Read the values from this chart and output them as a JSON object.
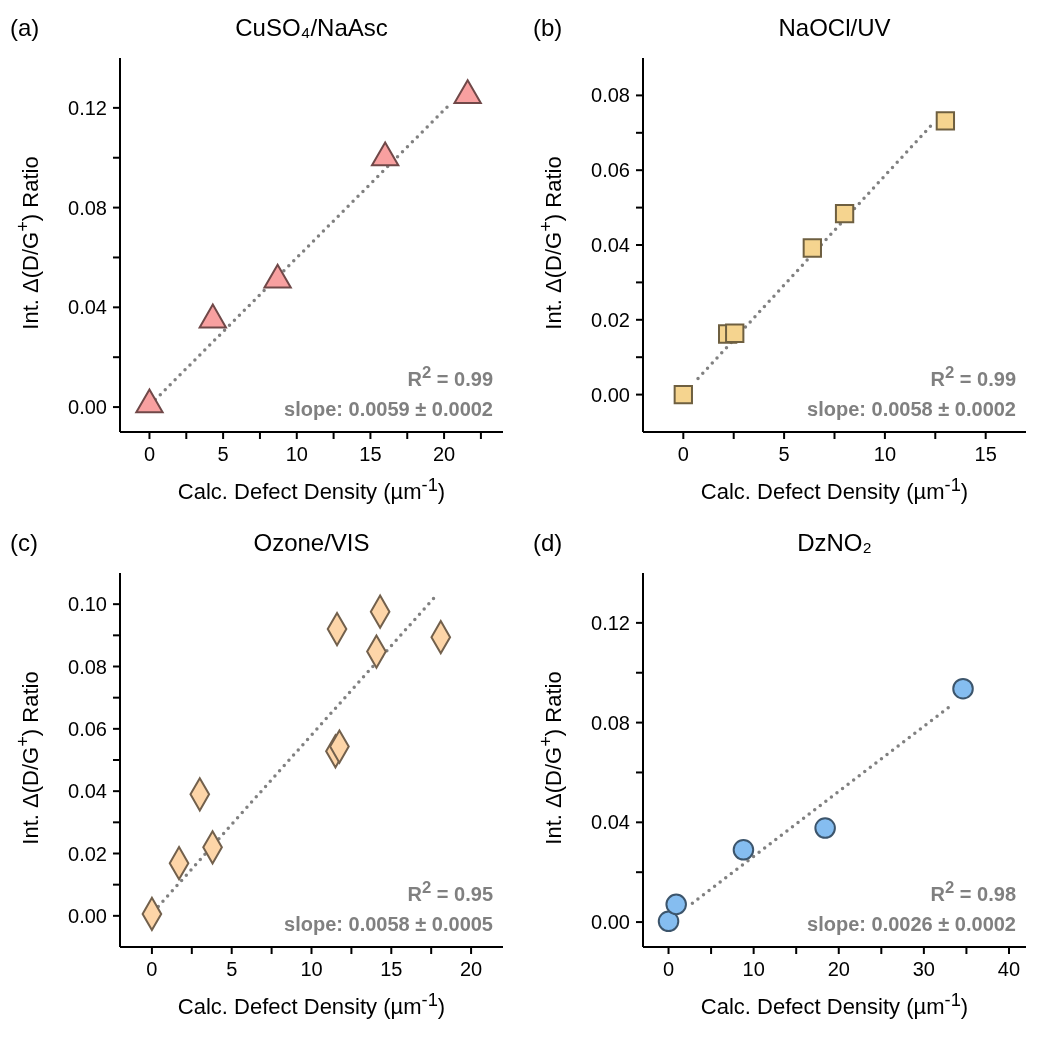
{
  "chart_data": [
    {
      "type": "scatter",
      "title": "CuSO₄/NaAsc",
      "xlabel": "Calc. Defect Density (µm$^{-1}$)",
      "ylabel": "Int. Δ(D/G$^{+}$) Ratio",
      "marker": "triangle",
      "annotations": [
        "(a)",
        "R$^{2}$ = 0.99",
        "slope: 0.0059 ± 0.0002"
      ],
      "xlim": [
        -2,
        24
      ],
      "xticks": [
        0,
        {
          "value": 2.5,
          "label": null
        },
        5,
        {
          "value": 7.5,
          "label": null
        },
        10,
        {
          "value": 12.5,
          "label": null
        },
        15,
        {
          "value": 17.5,
          "label": null
        },
        20,
        {
          "value": 22.5,
          "label": null
        }
      ],
      "ylim": [
        -0.01,
        0.14
      ],
      "yticks": [
        {
          "value": 0,
          "label": "0.00"
        },
        {
          "value": 0.02,
          "label": null
        },
        0.04,
        {
          "value": 0.06,
          "label": null
        },
        0.08,
        {
          "value": 0.1,
          "label": null
        },
        0.12
      ],
      "series": [
        {
          "color": "#f8a0a0",
          "x": [
            0,
            4.3,
            8.7,
            16.0,
            21.6
          ],
          "values": [
            0.001,
            0.035,
            0.051,
            0.1,
            0.125
          ]
        },
        {
          "type": "line",
          "marker": "none",
          "line_style": "dotted",
          "color": "#808080",
          "x": [
            0.4,
            20.4
          ],
          "values": [
            0.003,
            0.1215
          ]
        }
      ]
    },
    {
      "type": "scatter",
      "title": "NaOCl/UV",
      "xlabel": "Calc. Defect Density (µm$^{-1}$)",
      "ylabel": "Int. Δ(D/G$^{+}$) Ratio",
      "marker": "square",
      "annotations": [
        "(b)",
        "R$^{2}$ = 0.99",
        "slope: 0.0058 ± 0.0002"
      ],
      "xlim": [
        -2,
        17
      ],
      "xticks": [
        0,
        {
          "value": 2.5,
          "label": null
        },
        5,
        {
          "value": 7.5,
          "label": null
        },
        10,
        {
          "value": 12.5,
          "label": null
        },
        15
      ],
      "ylim": [
        -0.01,
        0.09
      ],
      "yticks": [
        {
          "value": 0,
          "label": "0.00"
        },
        {
          "value": 0.01,
          "label": null
        },
        0.02,
        {
          "value": 0.03,
          "label": null
        },
        0.04,
        {
          "value": 0.05,
          "label": null
        },
        0.06,
        {
          "value": 0.07,
          "label": null
        },
        0.08
      ],
      "series": [
        {
          "color": "#f5d48f",
          "x": [
            0,
            2.2,
            2.55,
            6.4,
            8.0,
            13.0
          ],
          "values": [
            0,
            0.0162,
            0.0164,
            0.0392,
            0.0484,
            0.0732
          ]
        },
        {
          "type": "line",
          "marker": "none",
          "line_style": "dotted",
          "color": "#808080",
          "x": [
            0.73,
            12.3
          ],
          "values": [
            0.0043,
            0.072
          ]
        }
      ]
    },
    {
      "type": "scatter",
      "title": "Ozone/VIS",
      "xlabel": "Calc. Defect Density (µm$^{-1}$)",
      "ylabel": "Int. Δ(D/G$^{+}$) Ratio",
      "marker": "diamond",
      "annotations": [
        "(c)",
        "R$^{2}$ = 0.95",
        "slope: 0.0058 ± 0.0005"
      ],
      "xlim": [
        -2,
        22
      ],
      "xticks": [
        0,
        {
          "value": 2.5,
          "label": null
        },
        5,
        {
          "value": 7.5,
          "label": null
        },
        10,
        {
          "value": 12.5,
          "label": null
        },
        15,
        {
          "value": 17.5,
          "label": null
        },
        20
      ],
      "ylim": [
        -0.01,
        0.11
      ],
      "yticks": [
        {
          "value": 0,
          "label": "0.00"
        },
        {
          "value": 0.01,
          "label": null
        },
        0.02,
        {
          "value": 0.03,
          "label": null
        },
        0.04,
        {
          "value": 0.05,
          "label": null
        },
        0.06,
        {
          "value": 0.07,
          "label": null
        },
        0.08,
        {
          "value": 0.09,
          "label": null
        },
        {
          "value": 0.1,
          "label": "0.10"
        }
      ],
      "series": [
        {
          "color": "#fdd5a8",
          "x": [
            0,
            1.7,
            3.0,
            3.8,
            11.5,
            11.75,
            11.6,
            14.07,
            14.3,
            18.1
          ],
          "values": [
            0.0006,
            0.0169,
            0.039,
            0.022,
            0.0528,
            0.0543,
            0.092,
            0.0848,
            0.0976,
            0.0894
          ]
        },
        {
          "type": "line",
          "marker": "none",
          "line_style": "dotted",
          "color": "#808080",
          "x": [
            0.4,
            17.8
          ],
          "values": [
            0.003,
            0.1027
          ]
        }
      ]
    },
    {
      "type": "scatter",
      "title": "DzNO₂",
      "xlabel": "Calc. Defect Density (µm$^{-1}$)",
      "ylabel": "Int. Δ(D/G$^{+}$) Ratio",
      "marker": "circle",
      "annotations": [
        "(d)",
        "R$^{2}$ = 0.98",
        "slope: 0.0026 ± 0.0002"
      ],
      "xlim": [
        -3,
        42
      ],
      "xticks": [
        0,
        {
          "value": 5,
          "label": null
        },
        10,
        {
          "value": 15,
          "label": null
        },
        20,
        {
          "value": 25,
          "label": null
        },
        30,
        {
          "value": 35,
          "label": null
        },
        40
      ],
      "ylim": [
        -0.01,
        0.14
      ],
      "yticks": [
        {
          "value": 0,
          "label": "0.00"
        },
        {
          "value": 0.02,
          "label": null
        },
        0.04,
        {
          "value": 0.06,
          "label": null
        },
        0.08,
        {
          "value": 0.1,
          "label": null
        },
        0.12
      ],
      "series": [
        {
          "color": "#85bdf0",
          "x": [
            0,
            0.9,
            8.8,
            18.4,
            34.6
          ],
          "values": [
            0.0003,
            0.0071,
            0.029,
            0.0377,
            0.0936
          ]
        },
        {
          "type": "line",
          "marker": "none",
          "line_style": "dotted",
          "color": "#808080",
          "x": [
            2.8,
            33.0
          ],
          "values": [
            0.0075,
            0.0863
          ]
        }
      ]
    }
  ]
}
